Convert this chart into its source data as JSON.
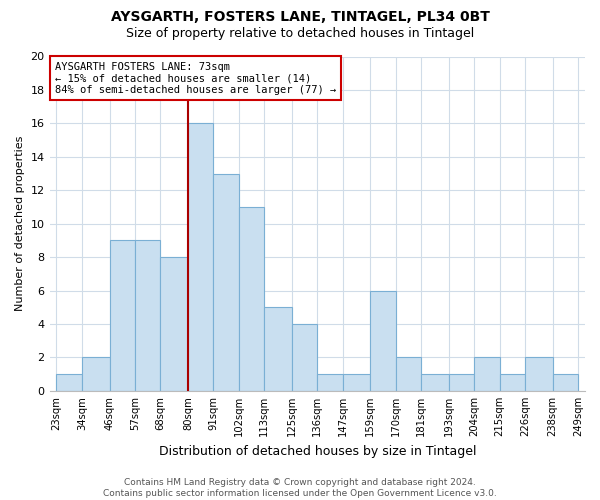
{
  "title": "AYSGARTH, FOSTERS LANE, TINTAGEL, PL34 0BT",
  "subtitle": "Size of property relative to detached houses in Tintagel",
  "xlabel": "Distribution of detached houses by size in Tintagel",
  "ylabel": "Number of detached properties",
  "bin_labels": [
    "23sqm",
    "34sqm",
    "46sqm",
    "57sqm",
    "68sqm",
    "80sqm",
    "91sqm",
    "102sqm",
    "113sqm",
    "125sqm",
    "136sqm",
    "147sqm",
    "159sqm",
    "170sqm",
    "181sqm",
    "193sqm",
    "204sqm",
    "215sqm",
    "226sqm",
    "238sqm",
    "249sqm"
  ],
  "bin_edges": [
    23,
    34,
    46,
    57,
    68,
    80,
    91,
    102,
    113,
    125,
    136,
    147,
    159,
    170,
    181,
    193,
    204,
    215,
    226,
    238,
    249
  ],
  "counts": [
    1,
    2,
    9,
    9,
    8,
    16,
    13,
    11,
    5,
    4,
    1,
    1,
    6,
    2,
    1,
    1,
    2,
    1,
    2,
    1
  ],
  "bar_color": "#c9dff0",
  "bar_edge_color": "#7aafd4",
  "grid_color": "#d0dce8",
  "vline_x": 80,
  "vline_color": "#aa0000",
  "annotation_line1": "AYSGARTH FOSTERS LANE: 73sqm",
  "annotation_line2": "← 15% of detached houses are smaller (14)",
  "annotation_line3": "84% of semi-detached houses are larger (77) →",
  "ann_box_color": "#cc0000",
  "ylim": [
    0,
    20
  ],
  "yticks": [
    0,
    2,
    4,
    6,
    8,
    10,
    12,
    14,
    16,
    18,
    20
  ],
  "footer_text": "Contains HM Land Registry data © Crown copyright and database right 2024.\nContains public sector information licensed under the Open Government Licence v3.0.",
  "background_color": "#ffffff"
}
